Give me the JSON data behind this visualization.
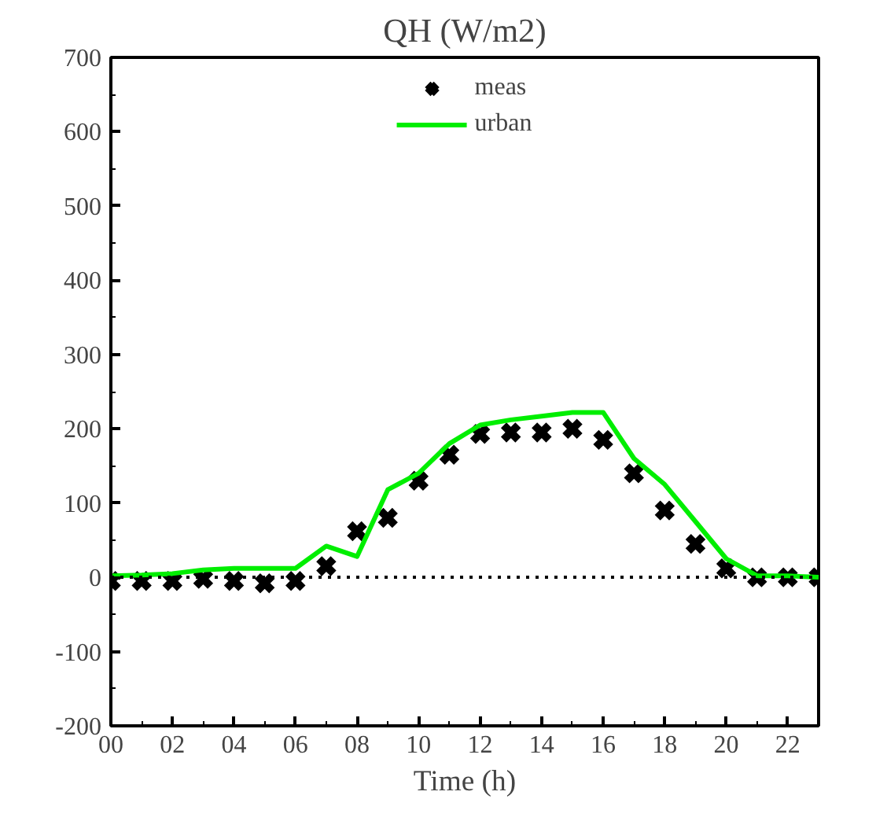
{
  "chart_data": {
    "type": "line",
    "title": "QH (W/m2)",
    "xlabel": "Time (h)",
    "x": [
      0,
      1,
      2,
      3,
      4,
      5,
      6,
      7,
      8,
      9,
      10,
      11,
      12,
      13,
      14,
      15,
      16,
      17,
      18,
      19,
      20,
      21,
      22,
      23
    ],
    "series": [
      {
        "name": "meas",
        "type": "scatter",
        "marker": "cross",
        "color": "#000000",
        "values": [
          -5,
          -5,
          -5,
          -2,
          -5,
          -8,
          -5,
          15,
          62,
          80,
          130,
          165,
          193,
          195,
          195,
          200,
          185,
          140,
          90,
          45,
          12,
          0,
          0,
          0
        ]
      },
      {
        "name": "urban",
        "color": "#00ee00",
        "line_style": "solid",
        "values": [
          2,
          3,
          5,
          10,
          12,
          12,
          12,
          42,
          28,
          118,
          140,
          180,
          205,
          212,
          217,
          222,
          222,
          160,
          125,
          75,
          25,
          2,
          2,
          0
        ]
      }
    ],
    "xlim": [
      0,
      23
    ],
    "ylim": [
      -200,
      700
    ],
    "xticks": [
      {
        "value": 0,
        "label": "00"
      },
      {
        "value": 2,
        "label": "02"
      },
      {
        "value": 4,
        "label": "04"
      },
      {
        "value": 6,
        "label": "06"
      },
      {
        "value": 8,
        "label": "08"
      },
      {
        "value": 10,
        "label": "10"
      },
      {
        "value": 12,
        "label": "12"
      },
      {
        "value": 14,
        "label": "14"
      },
      {
        "value": 16,
        "label": "16"
      },
      {
        "value": 18,
        "label": "18"
      },
      {
        "value": 20,
        "label": "20"
      },
      {
        "value": 22,
        "label": "22"
      }
    ],
    "yticks": [
      -200,
      -100,
      0,
      100,
      200,
      300,
      400,
      500,
      600,
      700
    ],
    "ref_lines": [
      {
        "axis": "y",
        "value": 0,
        "color": "#000000",
        "line_style": "dotted"
      }
    ],
    "grid": false,
    "legend": "top"
  }
}
